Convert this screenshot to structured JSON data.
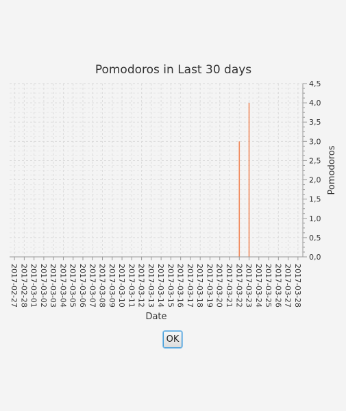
{
  "chart_data": {
    "type": "bar",
    "title": "Pomodoros in Last 30 days",
    "xlabel": "Date",
    "ylabel": "Pomodoros",
    "ylim": [
      0,
      4.5
    ],
    "y_ticks": [
      "0,0",
      "0,5",
      "1,0",
      "1,5",
      "2,0",
      "2,5",
      "3,0",
      "3,5",
      "4,0",
      "4,5"
    ],
    "y_axis_side": "right",
    "grid": true,
    "categories": [
      "2017-02-27",
      "2017-02-28",
      "2017-03-01",
      "2017-03-02",
      "2017-03-03",
      "2017-03-04",
      "2017-03-05",
      "2017-03-06",
      "2017-03-07",
      "2017-03-08",
      "2017-03-09",
      "2017-03-10",
      "2017-03-11",
      "2017-03-12",
      "2017-03-13",
      "2017-03-14",
      "2017-03-15",
      "2017-03-16",
      "2017-03-17",
      "2017-03-18",
      "2017-03-19",
      "2017-03-20",
      "2017-03-21",
      "2017-03-22",
      "2017-03-23",
      "2017-03-24",
      "2017-03-25",
      "2017-03-26",
      "2017-03-27",
      "2017-03-28"
    ],
    "values": [
      0,
      0,
      0,
      0,
      0,
      0,
      0,
      0,
      0,
      0,
      0,
      0,
      0,
      0,
      0,
      0,
      0,
      0,
      0,
      0,
      0,
      0,
      0,
      3,
      4,
      0,
      0,
      0,
      0,
      0
    ],
    "bar_color": "#f08a5d"
  },
  "dialog": {
    "ok_label": "OK"
  }
}
